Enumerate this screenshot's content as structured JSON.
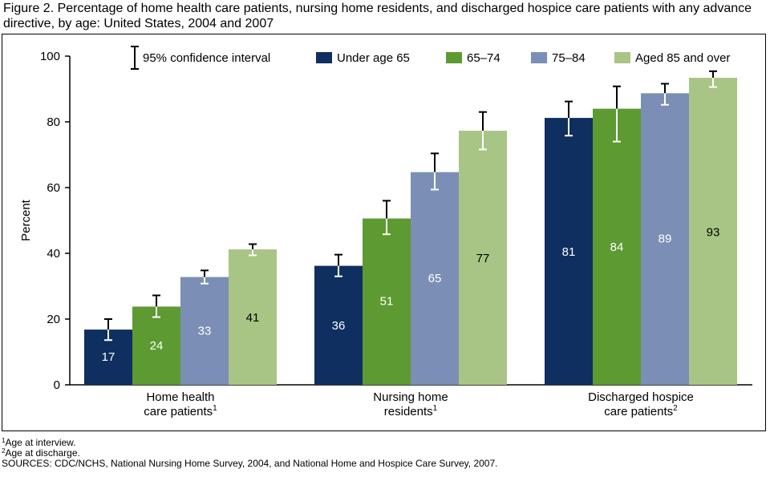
{
  "figure": {
    "title": "Figure 2. Percentage of home health care patients, nursing home residents, and discharged hospice care patients with any advance directive, by age: United States, 2004 and 2007"
  },
  "chart_data": {
    "type": "bar",
    "title": "Figure 2. Percentage of home health care patients, nursing home residents, and discharged hospice care patients with any advance directive, by age: United States, 2004 and 2007",
    "xlabel": "",
    "ylabel": "Percent",
    "ylim": [
      0,
      100
    ],
    "yticks": [
      0,
      20,
      40,
      60,
      80,
      100
    ],
    "grid": false,
    "legend_position": "top",
    "categories": [
      {
        "lines": [
          "Home health",
          "care patients"
        ],
        "sup": "1"
      },
      {
        "lines": [
          "Nursing home",
          "residents"
        ],
        "sup": "1"
      },
      {
        "lines": [
          "Discharged hospice",
          "care patients"
        ],
        "sup": "2"
      }
    ],
    "ci_legend_label": "95% confidence interval",
    "series": [
      {
        "name": "Under age 65",
        "color": "#0e2f5f",
        "label_color": "#ffffff",
        "values": [
          17,
          36,
          81
        ],
        "display_values": [
          16.8,
          36.2,
          81.2
        ],
        "ci_low": [
          13.6,
          33.0,
          75.8
        ],
        "ci_high": [
          20.0,
          39.6,
          86.2
        ]
      },
      {
        "name": "65–74",
        "color": "#5d9a32",
        "label_color": "#ffffff",
        "values": [
          24,
          51,
          84
        ],
        "display_values": [
          23.8,
          50.6,
          84.0
        ],
        "ci_low": [
          20.6,
          45.8,
          74.0
        ],
        "ci_high": [
          27.2,
          56.0,
          90.8
        ]
      },
      {
        "name": "75–84",
        "color": "#7b8fb6",
        "label_color": "#ffffff",
        "values": [
          33,
          65,
          89
        ],
        "display_values": [
          32.8,
          64.7,
          88.7
        ],
        "ci_low": [
          30.8,
          59.4,
          85.2
        ],
        "ci_high": [
          34.8,
          70.4,
          91.6
        ]
      },
      {
        "name": "Aged 85 and over",
        "color": "#a8c585",
        "label_color": "#000000",
        "values": [
          41,
          77,
          93
        ],
        "display_values": [
          41.2,
          77.3,
          93.4
        ],
        "ci_low": [
          39.4,
          71.6,
          90.6
        ],
        "ci_high": [
          42.8,
          83.0,
          95.4
        ]
      }
    ]
  },
  "footnotes": [
    {
      "sup": "1",
      "text": "Age at interview."
    },
    {
      "sup": "2",
      "text": "Age at discharge."
    },
    {
      "sup": "",
      "text": "SOURCES: CDC/NCHS, National Nursing Home Survey, 2004, and National Home and Hospice Care Survey, 2007."
    }
  ]
}
